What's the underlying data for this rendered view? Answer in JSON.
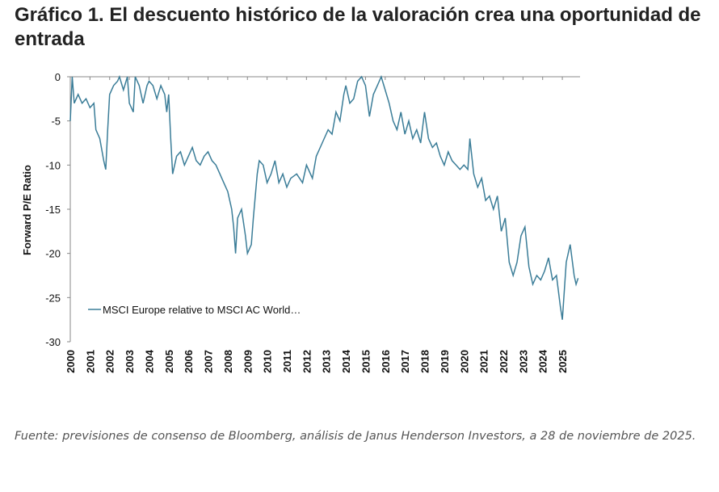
{
  "chart_data": {
    "type": "line",
    "title": "Gráfico 1. El descuento histórico de la valoración crea una oportunidad de entrada",
    "y_label": "Forward P/E Ratio",
    "note": "Fuente: previsiones de consenso de Bloomberg, análisis de Janus Henderson Investors, a 28 de noviembre de 2025.",
    "xlim": [
      2000,
      2025.9
    ],
    "xticks": [
      2000,
      2001,
      2002,
      2003,
      2004,
      2005,
      2006,
      2007,
      2008,
      2009,
      2010,
      2011,
      2012,
      2013,
      2014,
      2015,
      2016,
      2017,
      2018,
      2019,
      2020,
      2021,
      2022,
      2023,
      2024,
      2025
    ],
    "ylim": [
      -30,
      0
    ],
    "yticks": [
      0,
      -5,
      -10,
      -15,
      -20,
      -25,
      -30
    ],
    "legend": "lower-left",
    "series": [
      {
        "name": "MSCI Europe relative to MSCI AC World…",
        "color": "#3b7d98",
        "x": [
          2000.0,
          2000.1,
          2000.2,
          2000.4,
          2000.6,
          2000.8,
          2001.0,
          2001.2,
          2001.3,
          2001.5,
          2001.7,
          2001.8,
          2001.9,
          2002.0,
          2002.2,
          2002.4,
          2002.5,
          2002.7,
          2002.9,
          2003.0,
          2003.2,
          2003.3,
          2003.5,
          2003.7,
          2003.9,
          2004.0,
          2004.2,
          2004.4,
          2004.6,
          2004.8,
          2004.9,
          2005.0,
          2005.1,
          2005.2,
          2005.4,
          2005.6,
          2005.8,
          2006.0,
          2006.2,
          2006.4,
          2006.6,
          2006.8,
          2007.0,
          2007.2,
          2007.4,
          2007.6,
          2007.8,
          2008.0,
          2008.2,
          2008.3,
          2008.4,
          2008.5,
          2008.7,
          2008.9,
          2009.0,
          2009.2,
          2009.3,
          2009.5,
          2009.6,
          2009.8,
          2010.0,
          2010.2,
          2010.4,
          2010.6,
          2010.8,
          2011.0,
          2011.2,
          2011.5,
          2011.8,
          2012.0,
          2012.3,
          2012.5,
          2012.7,
          2012.9,
          2013.1,
          2013.3,
          2013.5,
          2013.7,
          2013.9,
          2014.0,
          2014.2,
          2014.4,
          2014.6,
          2014.8,
          2015.0,
          2015.2,
          2015.4,
          2015.6,
          2015.8,
          2016.0,
          2016.2,
          2016.4,
          2016.6,
          2016.8,
          2017.0,
          2017.2,
          2017.4,
          2017.6,
          2017.8,
          2018.0,
          2018.2,
          2018.4,
          2018.6,
          2018.8,
          2019.0,
          2019.2,
          2019.4,
          2019.6,
          2019.8,
          2020.0,
          2020.2,
          2020.3,
          2020.5,
          2020.7,
          2020.9,
          2021.1,
          2021.3,
          2021.5,
          2021.7,
          2021.9,
          2022.1,
          2022.3,
          2022.5,
          2022.7,
          2022.9,
          2023.1,
          2023.3,
          2023.5,
          2023.7,
          2023.9,
          2024.1,
          2024.3,
          2024.5,
          2024.7,
          2024.9,
          2025.0,
          2025.2,
          2025.4,
          2025.6,
          2025.7,
          2025.8
        ],
        "values": [
          -5,
          0,
          -3,
          -2,
          -3,
          -2.5,
          -3.5,
          -3,
          -6,
          -7,
          -9.5,
          -10.5,
          -6,
          -2,
          -1,
          -0.5,
          0,
          -1.5,
          0,
          -3,
          -4,
          0,
          -1,
          -3,
          -1,
          -0.5,
          -1,
          -2.5,
          -1,
          -2,
          -4,
          -2,
          -7,
          -11,
          -9,
          -8.5,
          -10,
          -9,
          -8,
          -9.5,
          -10,
          -9,
          -8.5,
          -9.5,
          -10,
          -11,
          -12,
          -13,
          -15,
          -17,
          -20,
          -16,
          -15,
          -18,
          -20,
          -19,
          -16,
          -11,
          -9.5,
          -10,
          -12,
          -11,
          -9.5,
          -12,
          -11,
          -12.5,
          -11.5,
          -11,
          -12,
          -10,
          -11.5,
          -9,
          -8,
          -7,
          -6,
          -6.5,
          -4,
          -5,
          -2,
          -1,
          -3,
          -2.5,
          -0.5,
          0,
          -1,
          -4.5,
          -2,
          -1,
          0,
          -1.5,
          -3,
          -5,
          -6,
          -4,
          -6.5,
          -5,
          -7,
          -6,
          -7.5,
          -4,
          -7,
          -8,
          -7.5,
          -9,
          -10,
          -8.5,
          -9.5,
          -10,
          -10.5,
          -10,
          -10.5,
          -7,
          -11,
          -12.5,
          -11.5,
          -14,
          -13.5,
          -15,
          -13.5,
          -17.5,
          -16,
          -21,
          -22.5,
          -21,
          -18,
          -17,
          -21.5,
          -23.5,
          -22.5,
          -23,
          -22,
          -20.5,
          -23,
          -22.5,
          -26,
          -27.5,
          -21,
          -19,
          -22.5,
          -23.5,
          -22.8
        ]
      }
    ]
  }
}
